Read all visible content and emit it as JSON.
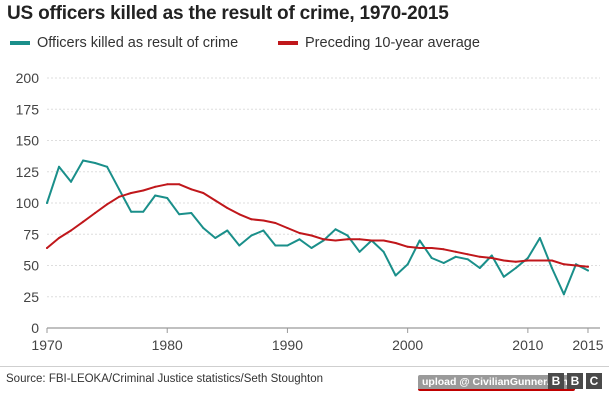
{
  "title": "US officers killed as the result of crime, 1970-2015",
  "legend": [
    {
      "label": "Officers killed as result of crime",
      "color": "#1a8f8a"
    },
    {
      "label": "Preceding 10-year average",
      "color": "#c0171b"
    }
  ],
  "source": "Source: FBI-LEOKA/Criminal Justice statistics/Seth Stoughton",
  "watermark": "upload @ CivilianGunner.com",
  "logo": [
    "B",
    "B",
    "C"
  ],
  "chart_data": {
    "type": "line",
    "title": "US officers killed as the result of crime, 1970-2015",
    "xlabel": "",
    "ylabel": "",
    "xlim": [
      1970,
      2016
    ],
    "ylim": [
      0,
      200
    ],
    "grid": true,
    "x_ticks": [
      1970,
      1980,
      1990,
      2000,
      2010,
      2015
    ],
    "y_ticks": [
      0,
      25,
      50,
      75,
      100,
      125,
      150,
      175,
      200
    ],
    "x_tick_labels": [
      "1970",
      "1980",
      "1990",
      "2000",
      "2010",
      "2015"
    ],
    "y_tick_labels": [
      "0",
      "25",
      "50",
      "75",
      "100",
      "125",
      "150",
      "175",
      "200"
    ],
    "series": [
      {
        "name": "Officers killed as result of crime",
        "color": "#1a8f8a",
        "x": [
          1970,
          1971,
          1972,
          1973,
          1974,
          1975,
          1976,
          1977,
          1978,
          1979,
          1980,
          1981,
          1982,
          1983,
          1984,
          1985,
          1986,
          1987,
          1988,
          1989,
          1990,
          1991,
          1992,
          1993,
          1994,
          1995,
          1996,
          1997,
          1998,
          1999,
          2000,
          2001,
          2002,
          2003,
          2004,
          2005,
          2006,
          2007,
          2008,
          2009,
          2010,
          2011,
          2012,
          2013,
          2014,
          2015
        ],
        "values": [
          100,
          129,
          117,
          134,
          132,
          129,
          111,
          93,
          93,
          106,
          104,
          91,
          92,
          80,
          72,
          78,
          66,
          74,
          78,
          66,
          66,
          71,
          64,
          70,
          79,
          74,
          61,
          70,
          61,
          42,
          51,
          70,
          56,
          52,
          57,
          55,
          48,
          58,
          41,
          48,
          56,
          72,
          48,
          27,
          51,
          46
        ]
      },
      {
        "name": "Preceding 10-year average",
        "color": "#c0171b",
        "x": [
          1970,
          1971,
          1972,
          1973,
          1974,
          1975,
          1976,
          1977,
          1978,
          1979,
          1980,
          1981,
          1982,
          1983,
          1984,
          1985,
          1986,
          1987,
          1988,
          1989,
          1990,
          1991,
          1992,
          1993,
          1994,
          1995,
          1996,
          1997,
          1998,
          1999,
          2000,
          2001,
          2002,
          2003,
          2004,
          2005,
          2006,
          2007,
          2008,
          2009,
          2010,
          2011,
          2012,
          2013,
          2014,
          2015
        ],
        "values": [
          64,
          72,
          78,
          85,
          92,
          99,
          105,
          108,
          110,
          113,
          115,
          115,
          111,
          108,
          102,
          96,
          91,
          87,
          86,
          84,
          80,
          76,
          74,
          71,
          70,
          71,
          71,
          70,
          70,
          68,
          65,
          64,
          64,
          63,
          61,
          59,
          57,
          56,
          54,
          53,
          54,
          54,
          54,
          51,
          50,
          49
        ]
      }
    ]
  }
}
